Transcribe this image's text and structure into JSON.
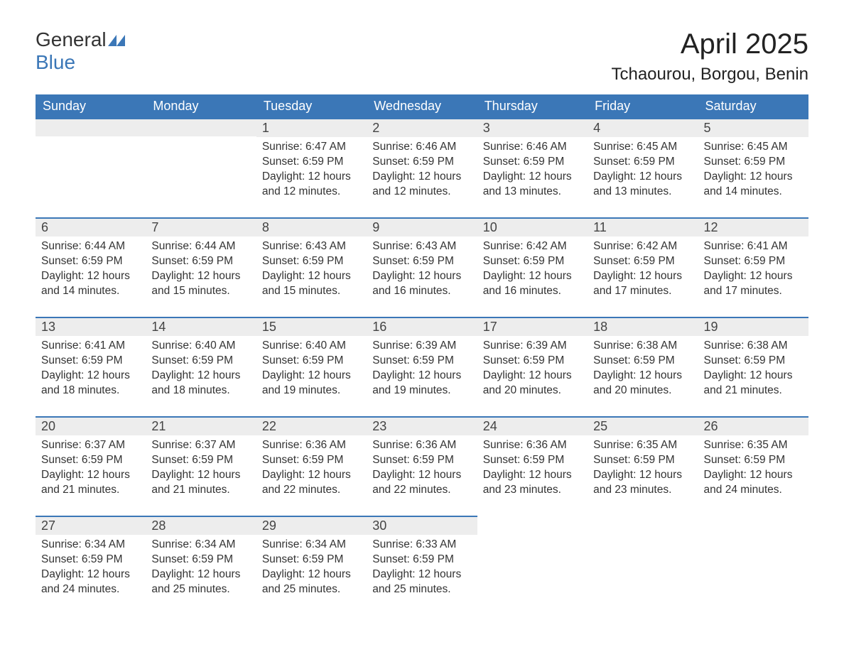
{
  "logo": {
    "word1": "General",
    "word2": "Blue"
  },
  "header": {
    "title": "April 2025",
    "location": "Tchaourou, Borgou, Benin"
  },
  "colors": {
    "accent": "#3b77b7",
    "header_bg": "#3b77b7",
    "daybar_bg": "#ededed",
    "text": "#333333",
    "page_bg": "#ffffff"
  },
  "columns": [
    "Sunday",
    "Monday",
    "Tuesday",
    "Wednesday",
    "Thursday",
    "Friday",
    "Saturday"
  ],
  "weeks": [
    [
      null,
      null,
      {
        "n": "1",
        "sr": "Sunrise: 6:47 AM",
        "ss": "Sunset: 6:59 PM",
        "d1": "Daylight: 12 hours",
        "d2": "and 12 minutes."
      },
      {
        "n": "2",
        "sr": "Sunrise: 6:46 AM",
        "ss": "Sunset: 6:59 PM",
        "d1": "Daylight: 12 hours",
        "d2": "and 12 minutes."
      },
      {
        "n": "3",
        "sr": "Sunrise: 6:46 AM",
        "ss": "Sunset: 6:59 PM",
        "d1": "Daylight: 12 hours",
        "d2": "and 13 minutes."
      },
      {
        "n": "4",
        "sr": "Sunrise: 6:45 AM",
        "ss": "Sunset: 6:59 PM",
        "d1": "Daylight: 12 hours",
        "d2": "and 13 minutes."
      },
      {
        "n": "5",
        "sr": "Sunrise: 6:45 AM",
        "ss": "Sunset: 6:59 PM",
        "d1": "Daylight: 12 hours",
        "d2": "and 14 minutes."
      }
    ],
    [
      {
        "n": "6",
        "sr": "Sunrise: 6:44 AM",
        "ss": "Sunset: 6:59 PM",
        "d1": "Daylight: 12 hours",
        "d2": "and 14 minutes."
      },
      {
        "n": "7",
        "sr": "Sunrise: 6:44 AM",
        "ss": "Sunset: 6:59 PM",
        "d1": "Daylight: 12 hours",
        "d2": "and 15 minutes."
      },
      {
        "n": "8",
        "sr": "Sunrise: 6:43 AM",
        "ss": "Sunset: 6:59 PM",
        "d1": "Daylight: 12 hours",
        "d2": "and 15 minutes."
      },
      {
        "n": "9",
        "sr": "Sunrise: 6:43 AM",
        "ss": "Sunset: 6:59 PM",
        "d1": "Daylight: 12 hours",
        "d2": "and 16 minutes."
      },
      {
        "n": "10",
        "sr": "Sunrise: 6:42 AM",
        "ss": "Sunset: 6:59 PM",
        "d1": "Daylight: 12 hours",
        "d2": "and 16 minutes."
      },
      {
        "n": "11",
        "sr": "Sunrise: 6:42 AM",
        "ss": "Sunset: 6:59 PM",
        "d1": "Daylight: 12 hours",
        "d2": "and 17 minutes."
      },
      {
        "n": "12",
        "sr": "Sunrise: 6:41 AM",
        "ss": "Sunset: 6:59 PM",
        "d1": "Daylight: 12 hours",
        "d2": "and 17 minutes."
      }
    ],
    [
      {
        "n": "13",
        "sr": "Sunrise: 6:41 AM",
        "ss": "Sunset: 6:59 PM",
        "d1": "Daylight: 12 hours",
        "d2": "and 18 minutes."
      },
      {
        "n": "14",
        "sr": "Sunrise: 6:40 AM",
        "ss": "Sunset: 6:59 PM",
        "d1": "Daylight: 12 hours",
        "d2": "and 18 minutes."
      },
      {
        "n": "15",
        "sr": "Sunrise: 6:40 AM",
        "ss": "Sunset: 6:59 PM",
        "d1": "Daylight: 12 hours",
        "d2": "and 19 minutes."
      },
      {
        "n": "16",
        "sr": "Sunrise: 6:39 AM",
        "ss": "Sunset: 6:59 PM",
        "d1": "Daylight: 12 hours",
        "d2": "and 19 minutes."
      },
      {
        "n": "17",
        "sr": "Sunrise: 6:39 AM",
        "ss": "Sunset: 6:59 PM",
        "d1": "Daylight: 12 hours",
        "d2": "and 20 minutes."
      },
      {
        "n": "18",
        "sr": "Sunrise: 6:38 AM",
        "ss": "Sunset: 6:59 PM",
        "d1": "Daylight: 12 hours",
        "d2": "and 20 minutes."
      },
      {
        "n": "19",
        "sr": "Sunrise: 6:38 AM",
        "ss": "Sunset: 6:59 PM",
        "d1": "Daylight: 12 hours",
        "d2": "and 21 minutes."
      }
    ],
    [
      {
        "n": "20",
        "sr": "Sunrise: 6:37 AM",
        "ss": "Sunset: 6:59 PM",
        "d1": "Daylight: 12 hours",
        "d2": "and 21 minutes."
      },
      {
        "n": "21",
        "sr": "Sunrise: 6:37 AM",
        "ss": "Sunset: 6:59 PM",
        "d1": "Daylight: 12 hours",
        "d2": "and 21 minutes."
      },
      {
        "n": "22",
        "sr": "Sunrise: 6:36 AM",
        "ss": "Sunset: 6:59 PM",
        "d1": "Daylight: 12 hours",
        "d2": "and 22 minutes."
      },
      {
        "n": "23",
        "sr": "Sunrise: 6:36 AM",
        "ss": "Sunset: 6:59 PM",
        "d1": "Daylight: 12 hours",
        "d2": "and 22 minutes."
      },
      {
        "n": "24",
        "sr": "Sunrise: 6:36 AM",
        "ss": "Sunset: 6:59 PM",
        "d1": "Daylight: 12 hours",
        "d2": "and 23 minutes."
      },
      {
        "n": "25",
        "sr": "Sunrise: 6:35 AM",
        "ss": "Sunset: 6:59 PM",
        "d1": "Daylight: 12 hours",
        "d2": "and 23 minutes."
      },
      {
        "n": "26",
        "sr": "Sunrise: 6:35 AM",
        "ss": "Sunset: 6:59 PM",
        "d1": "Daylight: 12 hours",
        "d2": "and 24 minutes."
      }
    ],
    [
      {
        "n": "27",
        "sr": "Sunrise: 6:34 AM",
        "ss": "Sunset: 6:59 PM",
        "d1": "Daylight: 12 hours",
        "d2": "and 24 minutes."
      },
      {
        "n": "28",
        "sr": "Sunrise: 6:34 AM",
        "ss": "Sunset: 6:59 PM",
        "d1": "Daylight: 12 hours",
        "d2": "and 25 minutes."
      },
      {
        "n": "29",
        "sr": "Sunrise: 6:34 AM",
        "ss": "Sunset: 6:59 PM",
        "d1": "Daylight: 12 hours",
        "d2": "and 25 minutes."
      },
      {
        "n": "30",
        "sr": "Sunrise: 6:33 AM",
        "ss": "Sunset: 6:59 PM",
        "d1": "Daylight: 12 hours",
        "d2": "and 25 minutes."
      },
      null,
      null,
      null
    ]
  ]
}
